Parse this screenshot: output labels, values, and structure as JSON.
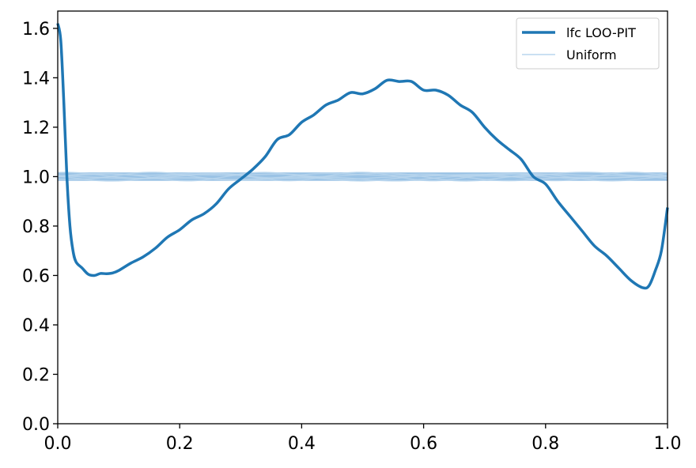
{
  "chart_data": {
    "type": "line",
    "title": "",
    "xlabel": "",
    "ylabel": "",
    "xlim": [
      0.0,
      1.0
    ],
    "ylim": [
      0.0,
      1.67
    ],
    "x_ticks": [
      "0.0",
      "0.2",
      "0.4",
      "0.6",
      "0.8",
      "1.0"
    ],
    "y_ticks": [
      "0.0",
      "0.2",
      "0.4",
      "0.6",
      "0.8",
      "1.0",
      "1.2",
      "1.4",
      "1.6"
    ],
    "grid": false,
    "legend_position": "top-right",
    "series": [
      {
        "name": "lfc LOO-PIT",
        "color": "#1f77b4",
        "x": [
          0.0,
          0.005,
          0.01,
          0.015,
          0.02,
          0.025,
          0.03,
          0.04,
          0.05,
          0.06,
          0.07,
          0.08,
          0.09,
          0.1,
          0.12,
          0.14,
          0.16,
          0.18,
          0.2,
          0.22,
          0.24,
          0.26,
          0.28,
          0.3,
          0.32,
          0.34,
          0.36,
          0.38,
          0.4,
          0.42,
          0.44,
          0.46,
          0.48,
          0.5,
          0.52,
          0.54,
          0.56,
          0.58,
          0.6,
          0.62,
          0.64,
          0.66,
          0.68,
          0.7,
          0.72,
          0.74,
          0.76,
          0.78,
          0.8,
          0.82,
          0.84,
          0.86,
          0.88,
          0.9,
          0.92,
          0.94,
          0.96,
          0.97,
          0.98,
          0.99,
          1.0
        ],
        "y": [
          1.62,
          1.55,
          1.3,
          1.0,
          0.8,
          0.7,
          0.655,
          0.63,
          0.605,
          0.6,
          0.608,
          0.607,
          0.61,
          0.62,
          0.65,
          0.675,
          0.71,
          0.755,
          0.785,
          0.825,
          0.85,
          0.89,
          0.95,
          0.99,
          1.03,
          1.08,
          1.15,
          1.17,
          1.22,
          1.25,
          1.29,
          1.31,
          1.34,
          1.335,
          1.355,
          1.39,
          1.385,
          1.385,
          1.35,
          1.35,
          1.33,
          1.29,
          1.26,
          1.2,
          1.15,
          1.11,
          1.07,
          1.0,
          0.97,
          0.9,
          0.84,
          0.78,
          0.72,
          0.68,
          0.63,
          0.58,
          0.55,
          0.56,
          0.62,
          0.7,
          0.875
        ]
      },
      {
        "name": "Uniform",
        "color": "#8ab9e0",
        "x": [
          0.0,
          0.1,
          0.2,
          0.3,
          0.4,
          0.5,
          0.6,
          0.7,
          0.8,
          0.9,
          1.0
        ],
        "y": [
          1.0,
          1.0,
          1.0,
          1.0,
          1.0,
          1.0,
          1.0,
          1.0,
          1.0,
          1.0,
          1.0
        ]
      }
    ]
  }
}
